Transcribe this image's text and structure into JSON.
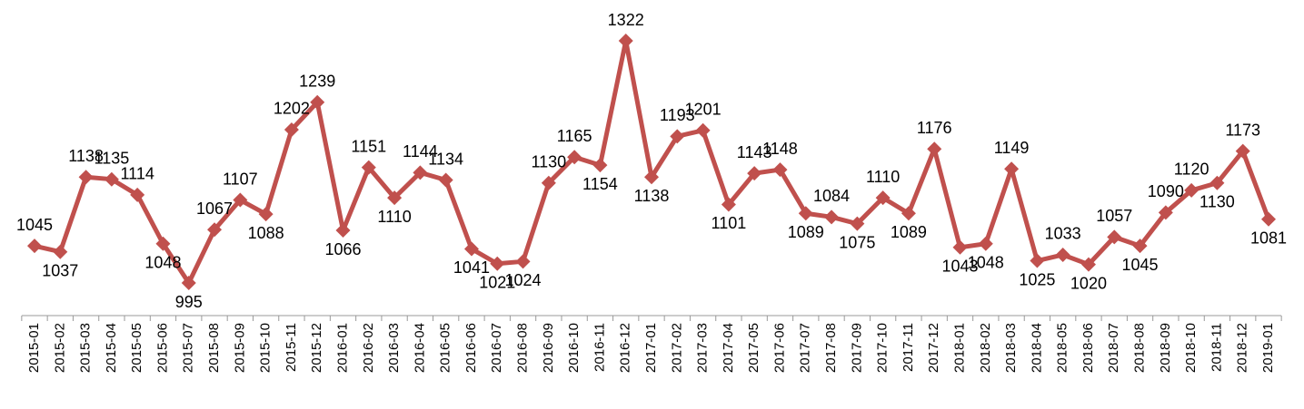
{
  "chart_data": {
    "type": "line",
    "categories": [
      "2015-01",
      "2015-02",
      "2015-03",
      "2015-04",
      "2015-05",
      "2015-06",
      "2015-07",
      "2015-08",
      "2015-09",
      "2015-10",
      "2015-11",
      "2015-12",
      "2016-01",
      "2016-02",
      "2016-03",
      "2016-04",
      "2016-05",
      "2016-06",
      "2016-07",
      "2016-08",
      "2016-09",
      "2016-10",
      "2016-11",
      "2016-12",
      "2017-01",
      "2017-02",
      "2017-03",
      "2017-04",
      "2017-05",
      "2017-06",
      "2017-07",
      "2017-08",
      "2017-09",
      "2017-10",
      "2017-11",
      "2017-12",
      "2018-01",
      "2018-02",
      "2018-03",
      "2018-04",
      "2018-05",
      "2018-06",
      "2018-07",
      "2018-08",
      "2018-09",
      "2018-10",
      "2018-11",
      "2018-12",
      "2019-01"
    ],
    "values": [
      1045,
      1037,
      1138,
      1135,
      1114,
      1048,
      995,
      1067,
      1107,
      1088,
      1202,
      1239,
      1066,
      1151,
      1110,
      1144,
      1134,
      1041,
      1021,
      1024,
      1130,
      1165,
      1154,
      1322,
      1138,
      1193,
      1201,
      1101,
      1143,
      1148,
      1089,
      1084,
      1075,
      1110,
      1089,
      1176,
      1043,
      1048,
      1149,
      1025,
      1033,
      1020,
      1057,
      1045,
      1090,
      1120,
      1130,
      1173,
      1081
    ],
    "color": "#c0504d"
  }
}
